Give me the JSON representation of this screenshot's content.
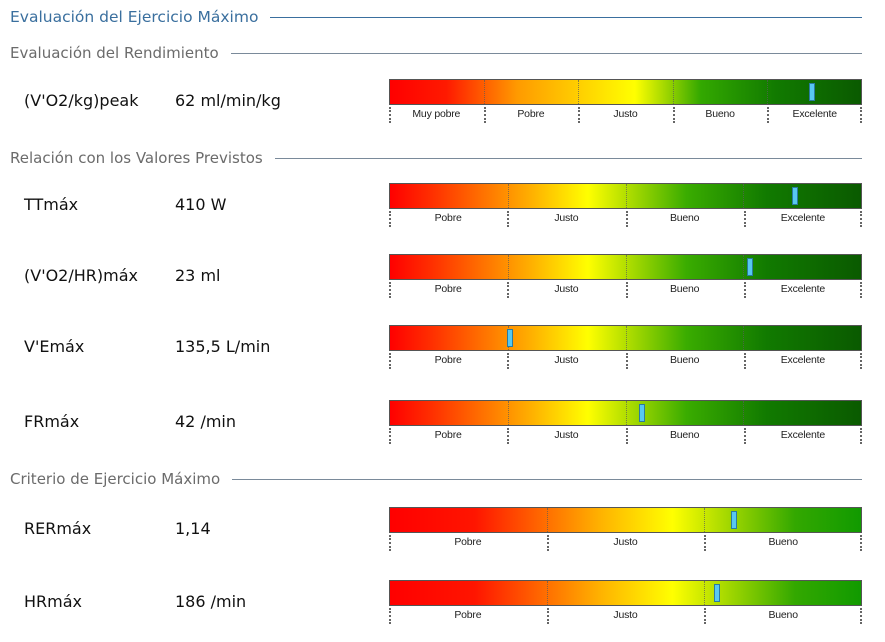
{
  "title": "Evaluación del Ejercicio Máximo",
  "sections": {
    "rendimiento": {
      "title": "Evaluación del Rendimiento",
      "rows": [
        {
          "param": "(V'O2/kg)peak",
          "value": "62 ml/min/kg",
          "marker_pct": 89.5,
          "categories": [
            "Muy pobre",
            "Pobre",
            "Justo",
            "Bueno",
            "Excelente"
          ]
        }
      ]
    },
    "previstos": {
      "title": "Relación con los Valores Previstos",
      "rows": [
        {
          "param": "TTmáx",
          "value": "410 W",
          "marker_pct": 86,
          "categories": [
            "Pobre",
            "Justo",
            "Bueno",
            "Excelente"
          ]
        },
        {
          "param": "(V'O2/HR)máx",
          "value": "23 ml",
          "marker_pct": 76.5,
          "categories": [
            "Pobre",
            "Justo",
            "Bueno",
            "Excelente"
          ]
        },
        {
          "param": "V'Emáx",
          "value": "135,5 L/min",
          "marker_pct": 25.5,
          "categories": [
            "Pobre",
            "Justo",
            "Bueno",
            "Excelente"
          ]
        },
        {
          "param": "FRmáx",
          "value": "42 /min",
          "marker_pct": 53.5,
          "categories": [
            "Pobre",
            "Justo",
            "Bueno",
            "Excelente"
          ]
        }
      ]
    },
    "criterio": {
      "title": "Criterio de Ejercicio Máximo",
      "rows": [
        {
          "param": "RERmáx",
          "value": "1,14",
          "marker_pct": 73,
          "categories": [
            "Pobre",
            "Justo",
            "Bueno"
          ]
        },
        {
          "param": "HRmáx",
          "value": "186 /min",
          "marker_pct": 69.5,
          "categories": [
            "Pobre",
            "Justo",
            "Bueno"
          ]
        }
      ]
    }
  }
}
